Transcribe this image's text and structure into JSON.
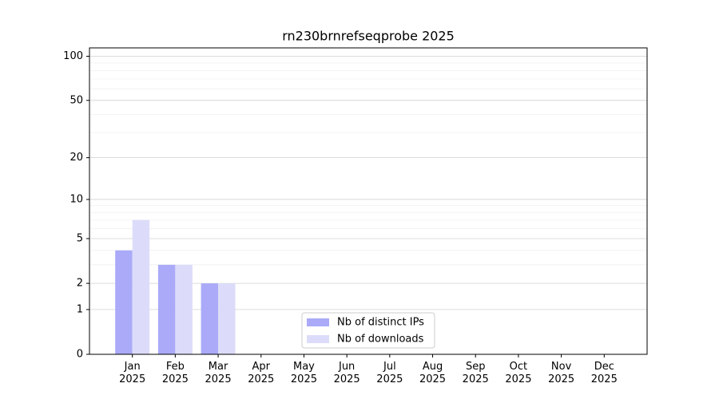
{
  "chart_data": {
    "type": "bar",
    "title": "rn230brnrefseqprobe 2025",
    "categories": [
      "Jan\n2025",
      "Feb\n2025",
      "Mar\n2025",
      "Apr\n2025",
      "May\n2025",
      "Jun\n2025",
      "Jul\n2025",
      "Aug\n2025",
      "Sep\n2025",
      "Oct\n2025",
      "Nov\n2025",
      "Dec\n2025"
    ],
    "series": [
      {
        "name": "Nb of distinct IPs",
        "color": "#aaaaf8",
        "values": [
          4,
          3,
          2,
          0,
          0,
          0,
          0,
          0,
          0,
          0,
          0,
          0
        ]
      },
      {
        "name": "Nb of downloads",
        "color": "#dcdcfa",
        "values": [
          7,
          3,
          2,
          0,
          0,
          0,
          0,
          0,
          0,
          0,
          0,
          0
        ]
      }
    ],
    "yscale": "log1p",
    "ylim": [
      0,
      114
    ],
    "yticks": [
      0,
      1,
      2,
      5,
      10,
      20,
      50,
      100
    ],
    "minor_yticks": [
      3,
      4,
      6,
      7,
      8,
      9,
      30,
      40,
      60,
      70,
      80,
      90
    ],
    "grid": true,
    "legend": "lower center"
  }
}
